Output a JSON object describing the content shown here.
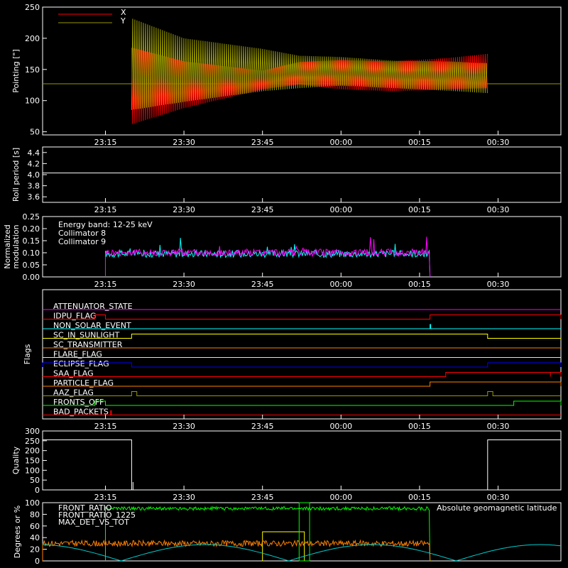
{
  "chart_data": [
    {
      "type": "line",
      "ylabel": "Pointing [\"]",
      "ylim": [
        45,
        250
      ],
      "yticks": [
        50,
        100,
        150,
        200,
        250
      ],
      "xlim": [
        "23:03",
        "00:42"
      ],
      "xticks": [
        "23:15",
        "23:30",
        "23:45",
        "00:00",
        "00:15",
        "00:30"
      ],
      "legend_placement": "top-left",
      "legend": [
        "X",
        "Y"
      ],
      "series": [
        {
          "name": "X",
          "color": "#ff0000",
          "x": [
            "23:20",
            "23:30",
            "23:45",
            "23:52",
            "00:00",
            "00:10",
            "00:20",
            "00:28"
          ],
          "min": [
            62,
            88,
            118,
            126,
            118,
            115,
            118,
            120
          ],
          "max": [
            185,
            163,
            148,
            162,
            165,
            163,
            168,
            175
          ]
        },
        {
          "name": "Y",
          "color": "#999900",
          "x": [
            "23:20",
            "23:30",
            "23:45",
            "23:52",
            "00:00",
            "00:10",
            "00:20",
            "00:28"
          ],
          "min": [
            85,
            98,
            115,
            120,
            124,
            120,
            116,
            112
          ],
          "max": [
            232,
            200,
            183,
            172,
            170,
            164,
            163,
            160
          ]
        }
      ],
      "reference_line": {
        "color": "#999900",
        "y": 127
      }
    },
    {
      "type": "line",
      "ylabel": "Roll period [s]",
      "ylim": [
        3.5,
        4.5
      ],
      "yticks": [
        3.6,
        3.8,
        4.0,
        4.2,
        4.4
      ],
      "xticks": [
        "23:15",
        "23:30",
        "23:45",
        "00:00",
        "00:15",
        "00:30"
      ],
      "series": [
        {
          "color": "#ffffff",
          "x": [
            "23:03",
            "00:42"
          ],
          "y": [
            4.03,
            4.03
          ]
        }
      ]
    },
    {
      "type": "line",
      "ylabel": "Normalized modulation",
      "ylim": [
        0,
        0.25
      ],
      "yticks": [
        0.0,
        0.05,
        0.1,
        0.15,
        0.2,
        0.25
      ],
      "xticks": [
        "23:15",
        "23:30",
        "23:45",
        "00:00",
        "00:15",
        "00:30"
      ],
      "annotation": "Energy band: 12-25 keV",
      "legend_placement": "top-left",
      "legend": [
        "Collimator 8",
        "Collimator 9"
      ],
      "series": [
        {
          "name": "Collimator 8",
          "color": "#00ffff",
          "x_range": [
            "23:15",
            "00:17"
          ],
          "baseline": 0.09
        },
        {
          "name": "Collimator 9",
          "color": "#ff00ff",
          "x_range": [
            "23:15",
            "00:17"
          ],
          "baseline": 0.095
        }
      ]
    },
    {
      "type": "line",
      "ylabel": "Flags",
      "xticks": [
        "23:15",
        "23:30",
        "23:45",
        "00:00",
        "00:15",
        "00:30"
      ],
      "flags": [
        {
          "name": "ATTENUATOR_STATE",
          "color": "#ff00ff",
          "steps": []
        },
        {
          "name": "IDPU_FLAG",
          "color": "#ff0000",
          "steps": [
            [
              "23:13",
              "23:15"
            ],
            [
              "00:17",
              "00:42"
            ]
          ]
        },
        {
          "name": "NON_SOLAR_EVENT",
          "color": "#00ffff",
          "steps": [
            [
              "00:17",
              "00:17"
            ]
          ]
        },
        {
          "name": "SC_IN_SUNLIGHT",
          "color": "#ffff00",
          "steps": [
            [
              "23:20",
              "00:28"
            ]
          ]
        },
        {
          "name": "SC_TRANSMITTER",
          "color": "#ff8000",
          "steps": []
        },
        {
          "name": "FLARE_FLAG",
          "color": "#ffff00",
          "steps": []
        },
        {
          "name": "ECLIPSE_FLAG",
          "color": "#0000ff",
          "steps": [
            [
              "23:03",
              "23:20"
            ],
            [
              "00:28",
              "00:42"
            ]
          ]
        },
        {
          "name": "SAA_FLAG",
          "color": "#ff0000",
          "steps": [
            [
              "00:20",
              "00:40"
            ],
            [
              "00:40",
              "00:42"
            ]
          ]
        },
        {
          "name": "PARTICLE_FLAG",
          "color": "#ff8000",
          "steps": [
            [
              "00:17",
              "00:42"
            ]
          ]
        },
        {
          "name": "AAZ_FLAG",
          "color": "#999900",
          "steps": [
            [
              "23:20",
              "23:21"
            ],
            [
              "00:28",
              "00:29"
            ]
          ]
        },
        {
          "name": "FRONTS_OFF",
          "color": "#00ff00",
          "steps": [
            [
              "23:13",
              "23:15"
            ],
            [
              "00:33",
              "00:42"
            ]
          ]
        },
        {
          "name": "BAD_PACKETS",
          "color": "#ff0000",
          "steps": [
            [
              "23:16",
              "23:16"
            ]
          ]
        }
      ]
    },
    {
      "type": "line",
      "ylabel": "Quality",
      "ylim": [
        0,
        300
      ],
      "yticks": [
        0,
        50,
        100,
        150,
        200,
        250,
        300
      ],
      "xticks": [
        "23:15",
        "23:30",
        "23:45",
        "00:00",
        "00:15",
        "00:30"
      ],
      "series": [
        {
          "color": "#ffffff",
          "x": [
            "23:03",
            "23:20",
            "23:20",
            "00:28",
            "00:28",
            "00:42"
          ],
          "y": [
            255,
            255,
            0,
            0,
            255,
            255
          ]
        }
      ]
    },
    {
      "type": "line",
      "ylabel": "Degrees or %",
      "ylim": [
        0,
        100
      ],
      "yticks": [
        0,
        20,
        40,
        60,
        80,
        100
      ],
      "xlim": [
        "23:03",
        "00:42"
      ],
      "legend_placement": "top-left",
      "legend": [
        "FRONT_RATIO",
        "FRONT_RATIO_1225",
        "MAX_DET_VS_TOT"
      ],
      "annotation": "Absolute geomagnetic latitude",
      "series": [
        {
          "name": "FRONT_RATIO",
          "color": "#ffff00",
          "x": [
            "23:45",
            "23:48",
            "23:53"
          ],
          "y": [
            50,
            52,
            50
          ]
        },
        {
          "name": "FRONT_RATIO_1225",
          "color": "#00ff00",
          "x_range": [
            "23:15",
            "00:17"
          ],
          "baseline": 90
        },
        {
          "name": "MAX_DET_VS_TOT",
          "color": "#ff8000",
          "x_range": [
            "23:03",
            "00:17"
          ],
          "baseline": 30
        },
        {
          "name": "Absolute geomagnetic latitude",
          "color": "#00cccc",
          "x": [
            "23:03",
            "23:18",
            "23:34",
            "23:50",
            "00:06",
            "00:22",
            "00:38"
          ],
          "y": [
            25,
            0,
            28,
            0,
            28,
            0,
            28
          ]
        }
      ]
    }
  ]
}
